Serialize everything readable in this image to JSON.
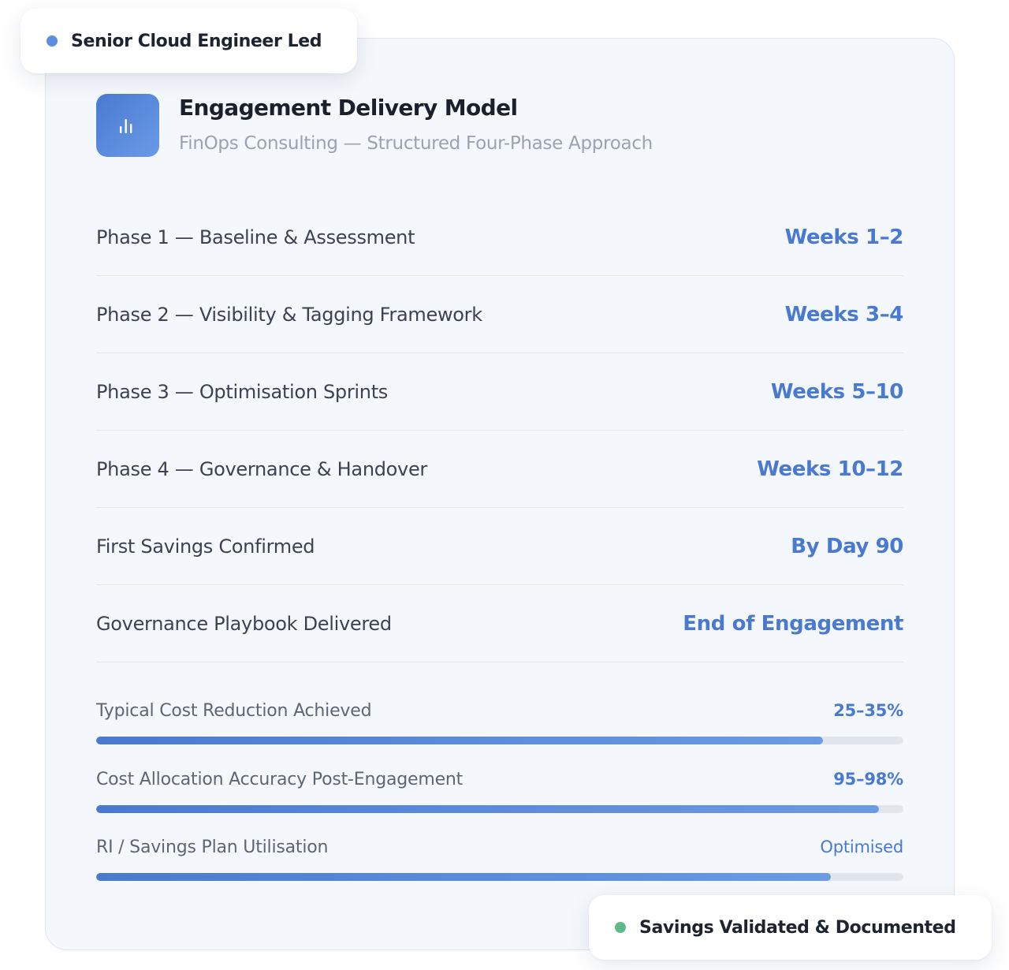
{
  "badges": {
    "top": {
      "label": "Senior Cloud Engineer Led",
      "dot_color": "#5b8ee0"
    },
    "bottom": {
      "label": "Savings Validated & Documented",
      "dot_color": "#5fb98a"
    }
  },
  "header": {
    "icon": "bar-chart-icon",
    "title": "Engagement Delivery Model",
    "subtitle": "FinOps Consulting — Structured Four-Phase Approach"
  },
  "timeline": [
    {
      "label": "Phase 1 — Baseline & Assessment",
      "value": "Weeks 1–2"
    },
    {
      "label": "Phase 2 — Visibility & Tagging Framework",
      "value": "Weeks 3–4"
    },
    {
      "label": "Phase 3 — Optimisation Sprints",
      "value": "Weeks 5–10"
    },
    {
      "label": "Phase 4 — Governance & Handover",
      "value": "Weeks 10–12"
    },
    {
      "label": "First Savings Confirmed",
      "value": "By Day 90"
    },
    {
      "label": "Governance Playbook Delivered",
      "value": "End of Engagement"
    }
  ],
  "metrics": [
    {
      "label": "Typical Cost Reduction Achieved",
      "value": "25–35%",
      "fill_fraction": 0.9
    },
    {
      "label": "Cost Allocation Accuracy Post-Engagement",
      "value": "95–98%",
      "fill_fraction": 0.97
    },
    {
      "label": "RI / Savings Plan Utilisation",
      "value": "Optimised",
      "fill_fraction": 0.91
    }
  ],
  "colors": {
    "accent": "#4a7ad0",
    "card_background": "#f4f7fb",
    "bar_track": "#e1e6ed"
  }
}
